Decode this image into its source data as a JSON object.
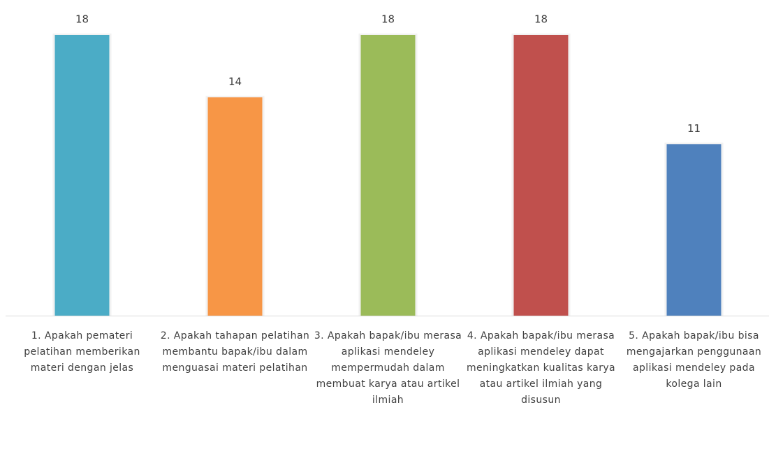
{
  "chart_data": {
    "type": "bar",
    "categories": [
      "1. Apakah pemateri pelatihan memberikan materi dengan jelas",
      "2. Apakah tahapan pelatihan membantu bapak/ibu dalam menguasai materi pelatihan",
      "3. Apakah bapak/ibu merasa aplikasi mendeley mempermudah dalam membuat karya atau artikel ilmiah",
      "4. Apakah bapak/ibu merasa aplikasi mendeley dapat meningkatkan kualitas karya atau artikel ilmiah yang disusun",
      "5. Apakah bapak/ibu bisa mengajarkan penggunaan aplikasi mendeley pada kolega lain"
    ],
    "values": [
      18,
      14,
      18,
      18,
      11
    ],
    "colors": [
      "#4bacc6",
      "#f79646",
      "#9bbb59",
      "#c0504d",
      "#4f81bd"
    ]
  }
}
